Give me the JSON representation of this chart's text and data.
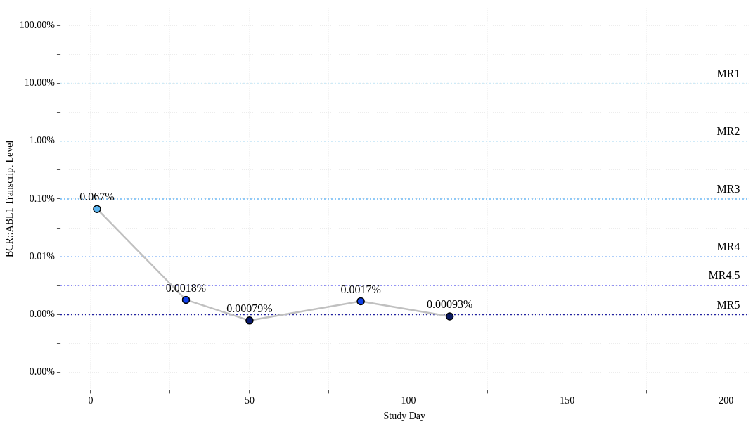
{
  "chart_data": {
    "type": "line",
    "xlabel": "Study Day",
    "ylabel": "BCR::ABL1 Transcript Level",
    "x": [
      2,
      30,
      50,
      85,
      113
    ],
    "series": [
      {
        "color": "#c0c0c0",
        "colors": [
          "#5ab4f0",
          "#1040f0",
          "#0a1a70",
          "#1040e8",
          "#0a1a60"
        ],
        "values": [
          0.067,
          0.0018,
          0.00079,
          0.0017,
          0.00093
        ],
        "value_labels": [
          "0.067%",
          "0.0018%",
          "0.00079%",
          "0.0017%",
          "0.00093%"
        ]
      }
    ],
    "marker": "circle",
    "line_style": "solid",
    "log": "y",
    "grid": true,
    "xlim": [
      -9.5,
      207
    ],
    "xticks": [
      0,
      {
        "value": 25,
        "label": null
      },
      50,
      {
        "value": 75,
        "label": null
      },
      100,
      {
        "value": 125,
        "label": null
      },
      150,
      {
        "value": 175,
        "label": null
      },
      200
    ],
    "ylim": [
      5e-05,
      200
    ],
    "yticks": [
      {
        "value": 0.0001,
        "label": "0.00%"
      },
      {
        "value": 0.000316,
        "label": null
      },
      {
        "value": 0.001,
        "label": "0.00%"
      },
      {
        "value": 0.00316,
        "label": null
      },
      {
        "value": 0.01,
        "label": "0.01%"
      },
      {
        "value": 0.0316,
        "label": null
      },
      {
        "value": 0.1,
        "label": "0.10%"
      },
      {
        "value": 0.316,
        "label": null
      },
      {
        "value": 1,
        "label": "1.00%"
      },
      {
        "value": 3.16,
        "label": null
      },
      {
        "value": 10,
        "label": "10.00%"
      },
      {
        "value": 31.6,
        "label": null
      },
      {
        "value": 100,
        "label": "100.00%"
      }
    ],
    "ref_lines": [
      {
        "axis": "y",
        "value": 10,
        "label": "MR1",
        "color": "#cdeaf7",
        "line_style": "dotted"
      },
      {
        "axis": "y",
        "value": 1,
        "label": "MR2",
        "color": "#9fd6f2",
        "line_style": "dotted"
      },
      {
        "axis": "y",
        "value": 0.1,
        "label": "MR3",
        "color": "#6ab8f5",
        "line_style": "dotted"
      },
      {
        "axis": "y",
        "value": 0.01,
        "label": "MR4",
        "color": "#5c9cf5",
        "line_style": "dotted"
      },
      {
        "axis": "y",
        "value": 0.0032,
        "label": "MR4.5",
        "color": "#2a2af0",
        "line_style": "dotted"
      },
      {
        "axis": "y",
        "value": 0.001,
        "label": "MR5",
        "color": "#2020a0",
        "line_style": "dotted"
      }
    ]
  }
}
